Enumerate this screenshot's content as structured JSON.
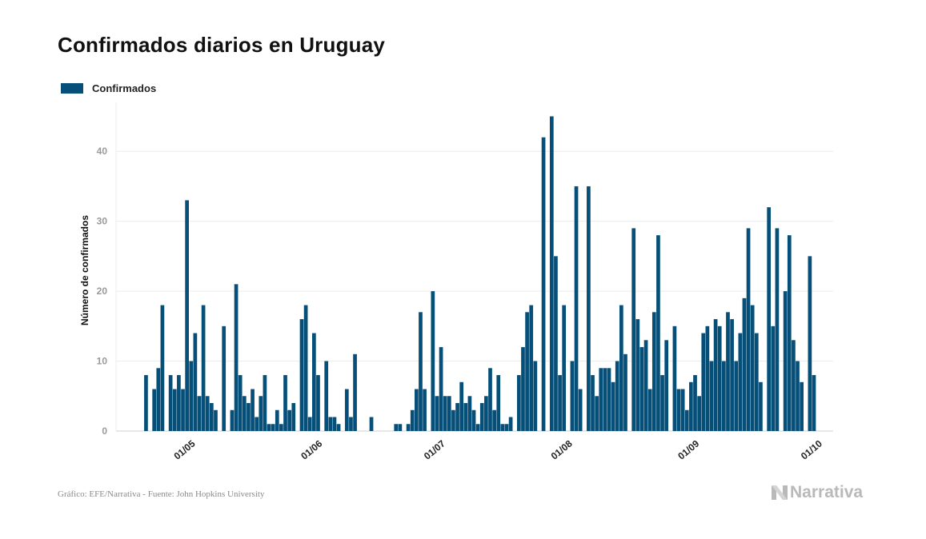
{
  "chart_data": {
    "type": "bar",
    "title": "Confirmados diarios en Uruguay",
    "ylabel": "Número de confirmados",
    "xlabel": "",
    "ylim": [
      0,
      47
    ],
    "yticks": [
      0,
      10,
      20,
      30,
      40
    ],
    "grid": true,
    "legend": "top-left",
    "x_start": "2020-04-13",
    "x_end": "2020-10-01",
    "xticks": [
      {
        "date": "2020-05-01",
        "label": "01/05"
      },
      {
        "date": "2020-06-01",
        "label": "01/06"
      },
      {
        "date": "2020-07-01",
        "label": "01/07"
      },
      {
        "date": "2020-08-01",
        "label": "01/08"
      },
      {
        "date": "2020-09-01",
        "label": "01/09"
      },
      {
        "date": "2020-10-01",
        "label": "01/10"
      }
    ],
    "series": [
      {
        "name": "Confirmados",
        "color": "#064f78",
        "start_date": "2020-04-21",
        "values": [
          8,
          0,
          6,
          9,
          18,
          0,
          8,
          6,
          8,
          6,
          33,
          10,
          14,
          5,
          18,
          5,
          4,
          3,
          0,
          15,
          0,
          3,
          21,
          8,
          5,
          4,
          6,
          2,
          5,
          8,
          1,
          1,
          3,
          1,
          8,
          3,
          4,
          0,
          16,
          18,
          2,
          14,
          8,
          0,
          10,
          2,
          2,
          1,
          0,
          6,
          2,
          11,
          0,
          0,
          0,
          2,
          0,
          0,
          0,
          0,
          0,
          1,
          1,
          0,
          1,
          3,
          6,
          17,
          6,
          0,
          20,
          5,
          12,
          5,
          5,
          3,
          4,
          7,
          4,
          5,
          3,
          1,
          4,
          5,
          9,
          3,
          8,
          1,
          1,
          2,
          0,
          8,
          12,
          17,
          18,
          10,
          0,
          42,
          0,
          45,
          25,
          8,
          18,
          0,
          10,
          35,
          6,
          0,
          35,
          8,
          5,
          9,
          9,
          9,
          7,
          10,
          18,
          11,
          0,
          29,
          16,
          12,
          13,
          6,
          17,
          28,
          8,
          13,
          0,
          15,
          6,
          6,
          3,
          7,
          8,
          5,
          14,
          15,
          10,
          16,
          15,
          10,
          17,
          16,
          10,
          14,
          19,
          29,
          18,
          14,
          7,
          0,
          32,
          15,
          29,
          0,
          20,
          28,
          13,
          10,
          7,
          0,
          25,
          8
        ]
      }
    ]
  },
  "source": "Gráfico: EFE/Narrativa - Fuente: John Hopkins University",
  "logo": {
    "text": "Narrativa",
    "icon": "narrativa-n-logo-icon",
    "color": "#b9b9b9"
  }
}
